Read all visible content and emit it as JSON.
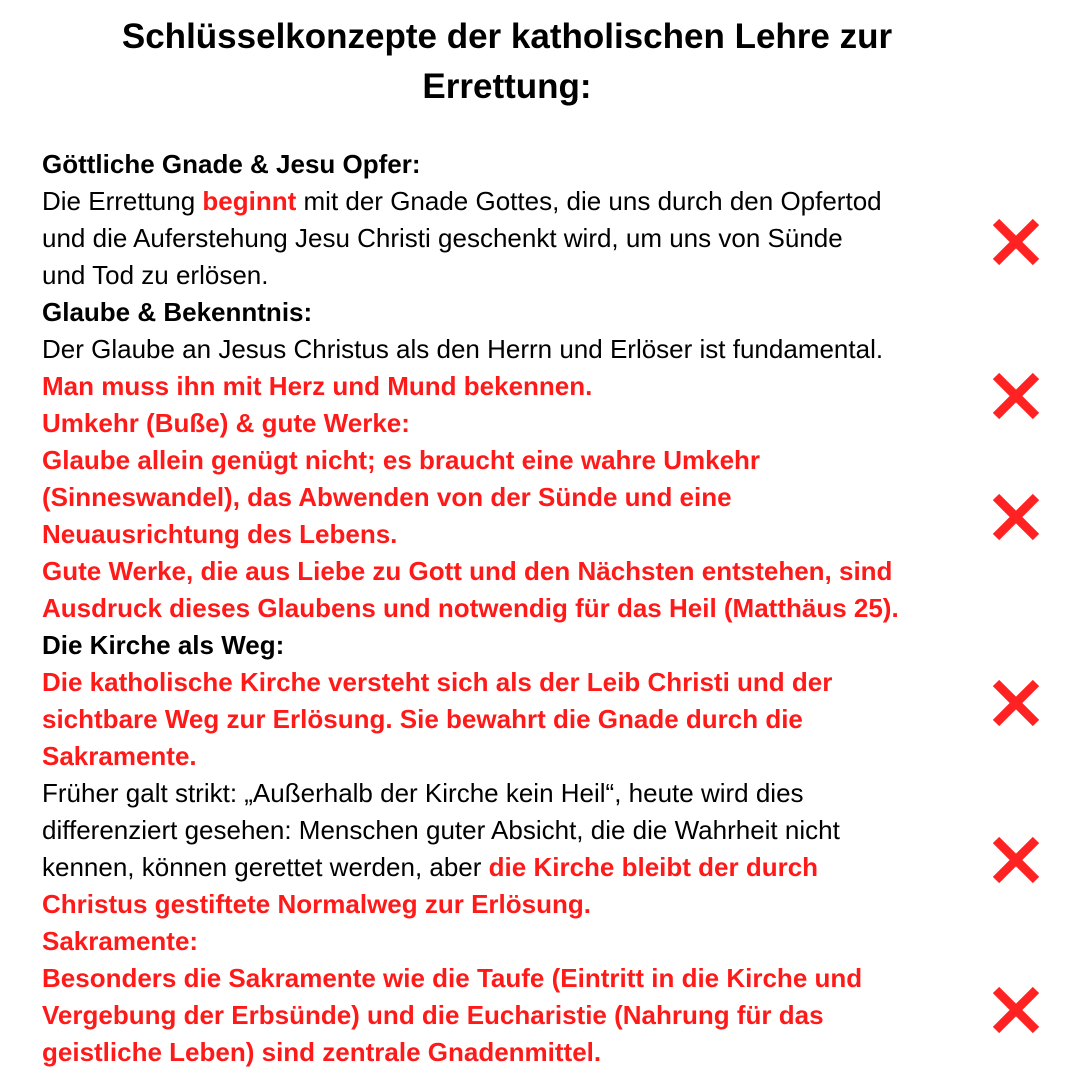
{
  "title": [
    "Schlüsselkonzepte der katholischen Lehre zur",
    "Errettung:"
  ],
  "accent_color": "#ff1a1a",
  "marker_icon": "red-x-cross-icon",
  "lines": [
    [
      {
        "t": "Göttliche Gnade & Jesu Opfer:",
        "s": "b"
      }
    ],
    [
      {
        "t": "Die Errettung ",
        "s": ""
      },
      {
        "t": "beginnt",
        "s": "r"
      },
      {
        "t": " mit der Gnade Gottes, die uns durch den Opfertod",
        "s": ""
      }
    ],
    [
      {
        "t": "und die Auferstehung Jesu Christi geschenkt wird, um uns von Sünde",
        "s": ""
      }
    ],
    [
      {
        "t": "und Tod zu erlösen.",
        "s": ""
      }
    ],
    [
      {
        "t": "Glaube & Bekenntnis:",
        "s": "b"
      }
    ],
    [
      {
        "t": "Der Glaube an Jesus Christus als den Herrn und Erlöser ist fundamental.",
        "s": ""
      }
    ],
    [
      {
        "t": "Man muss ihn mit Herz und Mund bekennen.",
        "s": "r"
      }
    ],
    [
      {
        "t": "Umkehr (Buße) & gute Werke:",
        "s": "r"
      }
    ],
    [
      {
        "t": "Glaube allein genügt nicht; es braucht eine wahre Umkehr",
        "s": "r"
      }
    ],
    [
      {
        "t": "(Sinneswandel), das Abwenden von der Sünde und eine",
        "s": "r"
      }
    ],
    [
      {
        "t": "Neuausrichtung des Lebens.",
        "s": "r"
      }
    ],
    [
      {
        "t": "Gute Werke, die aus Liebe zu Gott und den Nächsten entstehen, sind",
        "s": "r"
      }
    ],
    [
      {
        "t": "Ausdruck dieses Glaubens und notwendig für das Heil (Matthäus 25).",
        "s": "r"
      }
    ],
    [
      {
        "t": "Die Kirche als Weg:",
        "s": "b"
      }
    ],
    [
      {
        "t": "Die katholische Kirche versteht sich als der Leib Christi und der",
        "s": "r"
      }
    ],
    [
      {
        "t": "sichtbare Weg zur Erlösung. Sie bewahrt die Gnade durch die",
        "s": "r"
      }
    ],
    [
      {
        "t": "Sakramente.",
        "s": "r"
      }
    ],
    [
      {
        "t": "Früher galt strikt: „Außerhalb der Kirche kein Heil“, heute wird dies",
        "s": ""
      }
    ],
    [
      {
        "t": "differenziert gesehen: Menschen guter Absicht, die die Wahrheit nicht",
        "s": ""
      }
    ],
    [
      {
        "t": "kennen, können gerettet werden, aber ",
        "s": ""
      },
      {
        "t": "die Kirche bleibt der durch",
        "s": "r"
      }
    ],
    [
      {
        "t": "Christus gestiftete Normalweg zur Erlösung.",
        "s": "r"
      }
    ],
    [
      {
        "t": "Sakramente:",
        "s": "r"
      }
    ],
    [
      {
        "t": "Besonders die Sakramente wie die Taufe (Eintritt in die Kirche und",
        "s": "r"
      }
    ],
    [
      {
        "t": "Vergebung der Erbsünde) und die Eucharistie (Nahrung für das",
        "s": "r"
      }
    ],
    [
      {
        "t": "geistliche Leben) sind zentrale Gnadenmittel.",
        "s": "r"
      }
    ]
  ]
}
